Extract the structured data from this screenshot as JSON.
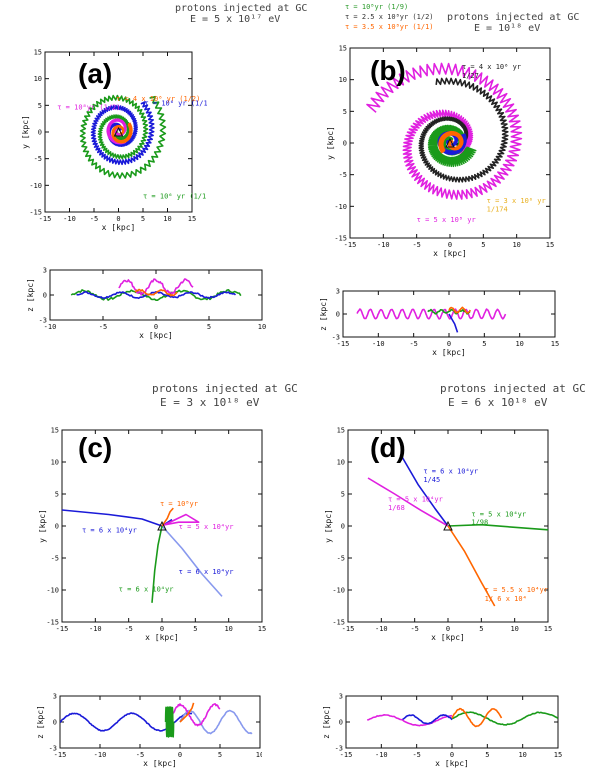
{
  "headers": {
    "a_line1": "protons injected at GC",
    "a_line2": "E = 5 x 10¹⁷ eV",
    "b_line1": "protons injected at GC",
    "b_line2": "E = 10¹⁸ eV",
    "c_line1": "protons injected at GC",
    "c_line2": "E = 3 x 10¹⁸ eV",
    "d_line1": "protons injected at GC",
    "d_line2": "E = 6 x 10¹⁸ eV"
  },
  "b_legend": [
    {
      "text": "τ = 10⁸yr (1/9)",
      "color": "#2a9a2a"
    },
    {
      "text": "τ = 2.5 x 10⁸yr (1/2)",
      "color": "#333333"
    },
    {
      "text": "τ = 3.5 x 10⁸yr (1/1)",
      "color": "#ff6600"
    }
  ],
  "colors": {
    "green": "#1a9a1a",
    "blue": "#1a1ad8",
    "magenta": "#e020e0",
    "orange": "#ff6600",
    "black": "#222222",
    "gold": "#e8b020",
    "lightblue": "#8899ee"
  },
  "chart_data": [
    {
      "type": "line",
      "panel": "(a)",
      "view": "x-y",
      "xlabel": "x [kpc]",
      "ylabel": "y [kpc]",
      "xlim": [
        -15,
        15
      ],
      "ylim": [
        -15,
        15
      ],
      "xticks": [
        -15,
        -10,
        -5,
        0,
        5,
        10,
        15
      ],
      "yticks": [
        -15,
        -10,
        -5,
        0,
        5,
        10,
        15
      ],
      "annotations": [
        {
          "text": "τ = 4 x 10⁶ yr (1/2)",
          "color": "#ff6600"
        },
        {
          "text": "τ = 10⁶ yr (1/12)",
          "color": "#1a1ad8"
        },
        {
          "text": "τ = 10⁸yr (1/2)",
          "color": "#e020e0"
        },
        {
          "text": "τ = 10⁶ yr (1/11)",
          "color": "#1a9a1a"
        }
      ],
      "series": [
        {
          "color": "green",
          "spiral": {
            "cx": 0,
            "cy": 0,
            "r0": 0.3,
            "r1": 9.5,
            "turns": 2.6,
            "phase": 3.3,
            "rough": 0.35
          }
        },
        {
          "color": "blue",
          "spiral": {
            "cx": 0,
            "cy": 0.3,
            "r0": 0.3,
            "r1": 7.2,
            "turns": 2.1,
            "phase": 0.2,
            "rough": 0.3
          }
        },
        {
          "color": "magenta",
          "spiral": {
            "cx": 0,
            "cy": 0.5,
            "r0": 0.2,
            "r1": 2.6,
            "turns": 1.6,
            "phase": 1.5,
            "rough": 0.15
          }
        },
        {
          "color": "orange",
          "spiral": {
            "cx": 0.3,
            "cy": 0,
            "r0": 0.3,
            "r1": 2.4,
            "turns": 1.3,
            "phase": 5.1,
            "rough": 0.15
          }
        }
      ]
    },
    {
      "type": "line",
      "panel": "(a)",
      "view": "x-z",
      "xlabel": "x [kpc]",
      "ylabel": "z [kpc]",
      "xlim": [
        -10,
        10
      ],
      "ylim": [
        -3,
        3
      ],
      "xticks": [
        -10,
        -5,
        0,
        5,
        10
      ],
      "yticks": [
        -3,
        0,
        3
      ],
      "series": [
        {
          "color": "green",
          "wave": {
            "x0": -8,
            "x1": 8,
            "z0": 0,
            "amp": 0.5,
            "freq": 3.5,
            "pts": 110,
            "rough": 0.15
          }
        },
        {
          "color": "blue",
          "wave": {
            "x0": -7.5,
            "x1": 7.5,
            "z0": 0,
            "amp": 0.3,
            "freq": 4.5,
            "pts": 110,
            "rough": 0.1
          }
        },
        {
          "color": "magenta",
          "wave": {
            "x0": -3.5,
            "x1": 3.5,
            "z0": 1.0,
            "amp": 0.8,
            "freq": 2.5,
            "pts": 70,
            "rough": 0.2
          }
        },
        {
          "color": "orange",
          "wave": {
            "x0": -2,
            "x1": 2,
            "z0": 0.3,
            "amp": 0.3,
            "freq": 2,
            "pts": 40,
            "rough": 0.1
          }
        }
      ]
    },
    {
      "type": "line",
      "panel": "(b)",
      "view": "x-y",
      "xlabel": "x [kpc]",
      "ylabel": "y [kpc]",
      "xlim": [
        -15,
        15
      ],
      "ylim": [
        -15,
        15
      ],
      "xticks": [
        -15,
        -10,
        -5,
        0,
        5,
        10,
        15
      ],
      "yticks": [
        -15,
        -10,
        -5,
        0,
        5,
        10,
        15
      ],
      "annotations": [
        {
          "text": "τ = 4 x 10⁶ yr",
          "color": "#222222"
        },
        {
          "text": "1/27",
          "color": "#222222"
        },
        {
          "text": "τ = 3 x 10⁶ yr",
          "color": "#e8b020"
        },
        {
          "text": "1/174",
          "color": "#e8b020"
        },
        {
          "text": "τ = 5 x 10⁸ yr",
          "color": "#e020e0"
        }
      ],
      "series": [
        {
          "color": "magenta",
          "spiral": {
            "cx": 0,
            "cy": 0,
            "r0": 0.5,
            "r1": 13,
            "turns": 1.75,
            "phase": 4.3,
            "rough": 0.6
          }
        },
        {
          "color": "black",
          "spiral": {
            "cx": 0.5,
            "cy": 0.5,
            "r0": 0.5,
            "r1": 9.5,
            "turns": 1.5,
            "phase": 5.0,
            "rough": 0.3
          }
        },
        {
          "color": "green",
          "spiral": {
            "cx": 0,
            "cy": 0,
            "r0": 0.5,
            "r1": 3.3,
            "turns": 1.8,
            "phase": 1.0,
            "rough": 0.5
          }
        },
        {
          "color": "blue",
          "spiral": {
            "cx": 0,
            "cy": 0.3,
            "r0": 0.3,
            "r1": 2.2,
            "turns": 1.6,
            "phase": 3.0,
            "rough": 0.2
          }
        },
        {
          "color": "orange",
          "spiral": {
            "cx": 0.5,
            "cy": 0,
            "r0": 0.3,
            "r1": 2.0,
            "turns": 1.3,
            "phase": 2.0,
            "rough": 0.2
          }
        }
      ]
    },
    {
      "type": "line",
      "panel": "(b)",
      "view": "x-z",
      "xlabel": "x [kpc]",
      "ylabel": "z [kpc]",
      "xlim": [
        -15,
        15
      ],
      "ylim": [
        -3,
        3
      ],
      "xticks": [
        -15,
        -10,
        -5,
        0,
        5,
        10,
        15
      ],
      "yticks": [
        -3,
        0,
        3
      ],
      "series": [
        {
          "color": "magenta",
          "wave": {
            "x0": -13,
            "x1": 8,
            "z0": 0,
            "amp": 0.6,
            "freq": 14,
            "pts": 220,
            "rough": 0.05
          }
        },
        {
          "color": "green",
          "wave": {
            "x0": -3,
            "x1": 3,
            "z0": 0.3,
            "amp": 0.2,
            "freq": 4,
            "pts": 40,
            "rough": 0.1
          }
        },
        {
          "color": "orange",
          "wave": {
            "x0": 0,
            "x1": 3,
            "z0": 0.5,
            "amp": 0.3,
            "freq": 2,
            "pts": 30,
            "rough": 0.1
          }
        },
        {
          "color": "blue",
          "points": [
            [
              0,
              0
            ],
            [
              0.3,
              -0.5
            ],
            [
              0.8,
              -1.3
            ],
            [
              1.2,
              -2.4
            ]
          ]
        }
      ]
    },
    {
      "type": "line",
      "panel": "(c)",
      "view": "x-y",
      "xlabel": "x [kpc]",
      "ylabel": "y [kpc]",
      "xlim": [
        -15,
        15
      ],
      "ylim": [
        -15,
        15
      ],
      "xticks": [
        -15,
        -10,
        -5,
        0,
        5,
        10,
        15
      ],
      "yticks": [
        -15,
        -10,
        -5,
        0,
        5,
        10,
        15
      ],
      "annotations": [
        {
          "text": "τ = 10⁸yr",
          "color": "#ff6600"
        },
        {
          "text": "τ = 6 x 10⁴yr",
          "color": "#1a1ad8"
        },
        {
          "text": "τ = 5 x 10⁴yr",
          "color": "#e020e0"
        },
        {
          "text": "τ = 6 x 10⁴yr",
          "color": "#1a1ad8"
        },
        {
          "text": "τ = 6 x 10⁴yr",
          "color": "#1a9a1a"
        }
      ],
      "series": [
        {
          "color": "blue",
          "points": [
            [
              -15,
              2.5
            ],
            [
              -8,
              1.8
            ],
            [
              -3,
              1.1
            ],
            [
              0,
              0
            ],
            [
              1.5,
              1.0
            ]
          ]
        },
        {
          "color": "lightblue",
          "points": [
            [
              0,
              0
            ],
            [
              3,
              -3.5
            ],
            [
              6,
              -7.5
            ],
            [
              9,
              -11
            ]
          ]
        },
        {
          "color": "magenta",
          "points": [
            [
              0,
              0
            ],
            [
              2,
              1.0
            ],
            [
              3.6,
              1.8
            ],
            [
              5.5,
              0.6
            ],
            [
              2.5,
              0.6
            ],
            [
              0.5,
              0.2
            ]
          ]
        },
        {
          "color": "orange",
          "points": [
            [
              0,
              0
            ],
            [
              0.8,
              1.2
            ],
            [
              1.2,
              2.2
            ],
            [
              1.7,
              2.8
            ]
          ]
        },
        {
          "color": "green",
          "points": [
            [
              0,
              0
            ],
            [
              -0.6,
              -3
            ],
            [
              -1.1,
              -7
            ],
            [
              -1.5,
              -12
            ]
          ]
        }
      ]
    },
    {
      "type": "line",
      "panel": "(c)",
      "view": "x-z",
      "xlabel": "x [kpc]",
      "ylabel": "z [kpc]",
      "xlim": [
        -15,
        10
      ],
      "ylim": [
        -3,
        3
      ],
      "xticks": [
        -15,
        -10,
        -5,
        0,
        5,
        10
      ],
      "yticks": [
        -3,
        0,
        3
      ],
      "series": [
        {
          "color": "blue",
          "wave": {
            "x0": -15,
            "x1": 1.5,
            "z0": 0,
            "amp": 1.0,
            "freq": 2.3,
            "pts": 120,
            "rough": 0.05
          }
        },
        {
          "color": "lightblue",
          "wave": {
            "x0": 0,
            "x1": 9,
            "z0": 0,
            "amp": 1.3,
            "freq": 1.8,
            "pts": 80,
            "rough": 0.05
          }
        },
        {
          "color": "magenta",
          "wave": {
            "x0": -1,
            "x1": 5,
            "z0": 0.8,
            "amp": 1.2,
            "freq": 1.4,
            "pts": 60,
            "rough": 0.1
          }
        },
        {
          "color": "green",
          "wave": {
            "x0": -1.8,
            "x1": -0.8,
            "z0": 0,
            "amp": 1.7,
            "freq": 5,
            "pts": 60,
            "rough": 0.05
          }
        },
        {
          "color": "orange",
          "points": [
            [
              0,
              0
            ],
            [
              1,
              0.9
            ],
            [
              1.5,
              1.6
            ],
            [
              1.7,
              2.2
            ]
          ]
        }
      ]
    },
    {
      "type": "line",
      "panel": "(d)",
      "view": "x-y",
      "xlabel": "x [kpc]",
      "ylabel": "y [kpc]",
      "xlim": [
        -15,
        15
      ],
      "ylim": [
        -15,
        15
      ],
      "xticks": [
        -15,
        -10,
        -5,
        0,
        5,
        10,
        15
      ],
      "yticks": [
        -15,
        -10,
        -5,
        0,
        5,
        10,
        15
      ],
      "annotations": [
        {
          "text": "τ = 6 x 10⁴yr",
          "color": "#1a1ad8"
        },
        {
          "text": "1/45",
          "color": "#1a1ad8"
        },
        {
          "text": "τ = 5 x 10⁴yr",
          "color": "#e020e0"
        },
        {
          "text": "1/68",
          "color": "#e020e0"
        },
        {
          "text": "τ = 5 x 10⁴yr",
          "color": "#1a9a1a"
        },
        {
          "text": "1/98",
          "color": "#1a9a1a"
        },
        {
          "text": "τ = 5.5 x 10⁴yr",
          "color": "#ff6600"
        },
        {
          "text": "1/ 6 x 10⁴",
          "color": "#ff6600"
        }
      ],
      "series": [
        {
          "color": "blue",
          "points": [
            [
              -7,
              11
            ],
            [
              -4.5,
              6.5
            ],
            [
              -2,
              2.8
            ],
            [
              0,
              0
            ]
          ]
        },
        {
          "color": "magenta",
          "points": [
            [
              -12,
              7.5
            ],
            [
              -8,
              5
            ],
            [
              -4,
              2.4
            ],
            [
              0,
              0
            ]
          ]
        },
        {
          "color": "green",
          "points": [
            [
              0,
              0
            ],
            [
              5,
              0.2
            ],
            [
              10,
              -0.2
            ],
            [
              15,
              -0.6
            ]
          ]
        },
        {
          "color": "orange",
          "points": [
            [
              0,
              0
            ],
            [
              2.5,
              -4
            ],
            [
              5,
              -8.8
            ],
            [
              7,
              -12.5
            ]
          ]
        }
      ]
    },
    {
      "type": "line",
      "panel": "(d)",
      "view": "x-z",
      "xlabel": "x [kpc]",
      "ylabel": "z [kpc]",
      "xlim": [
        -15,
        15
      ],
      "ylim": [
        -3,
        3
      ],
      "xticks": [
        -15,
        -10,
        -5,
        0,
        5,
        10,
        15
      ],
      "yticks": [
        -3,
        0,
        3
      ],
      "series": [
        {
          "color": "magenta",
          "wave": {
            "x0": -12,
            "x1": 0,
            "z0": 0.2,
            "amp": 0.6,
            "freq": 1.2,
            "pts": 60,
            "rough": 0.05
          }
        },
        {
          "color": "blue",
          "wave": {
            "x0": -7,
            "x1": 0,
            "z0": 0.3,
            "amp": 0.5,
            "freq": 1.5,
            "pts": 50,
            "rough": 0.05
          }
        },
        {
          "color": "green",
          "wave": {
            "x0": 0,
            "x1": 15,
            "z0": 0.4,
            "amp": 0.7,
            "freq": 1.5,
            "pts": 80,
            "rough": 0.05
          }
        },
        {
          "color": "orange",
          "wave": {
            "x0": 0,
            "x1": 7,
            "z0": 0.5,
            "amp": 1.0,
            "freq": 1.5,
            "pts": 50,
            "rough": 0.05
          }
        }
      ]
    }
  ]
}
